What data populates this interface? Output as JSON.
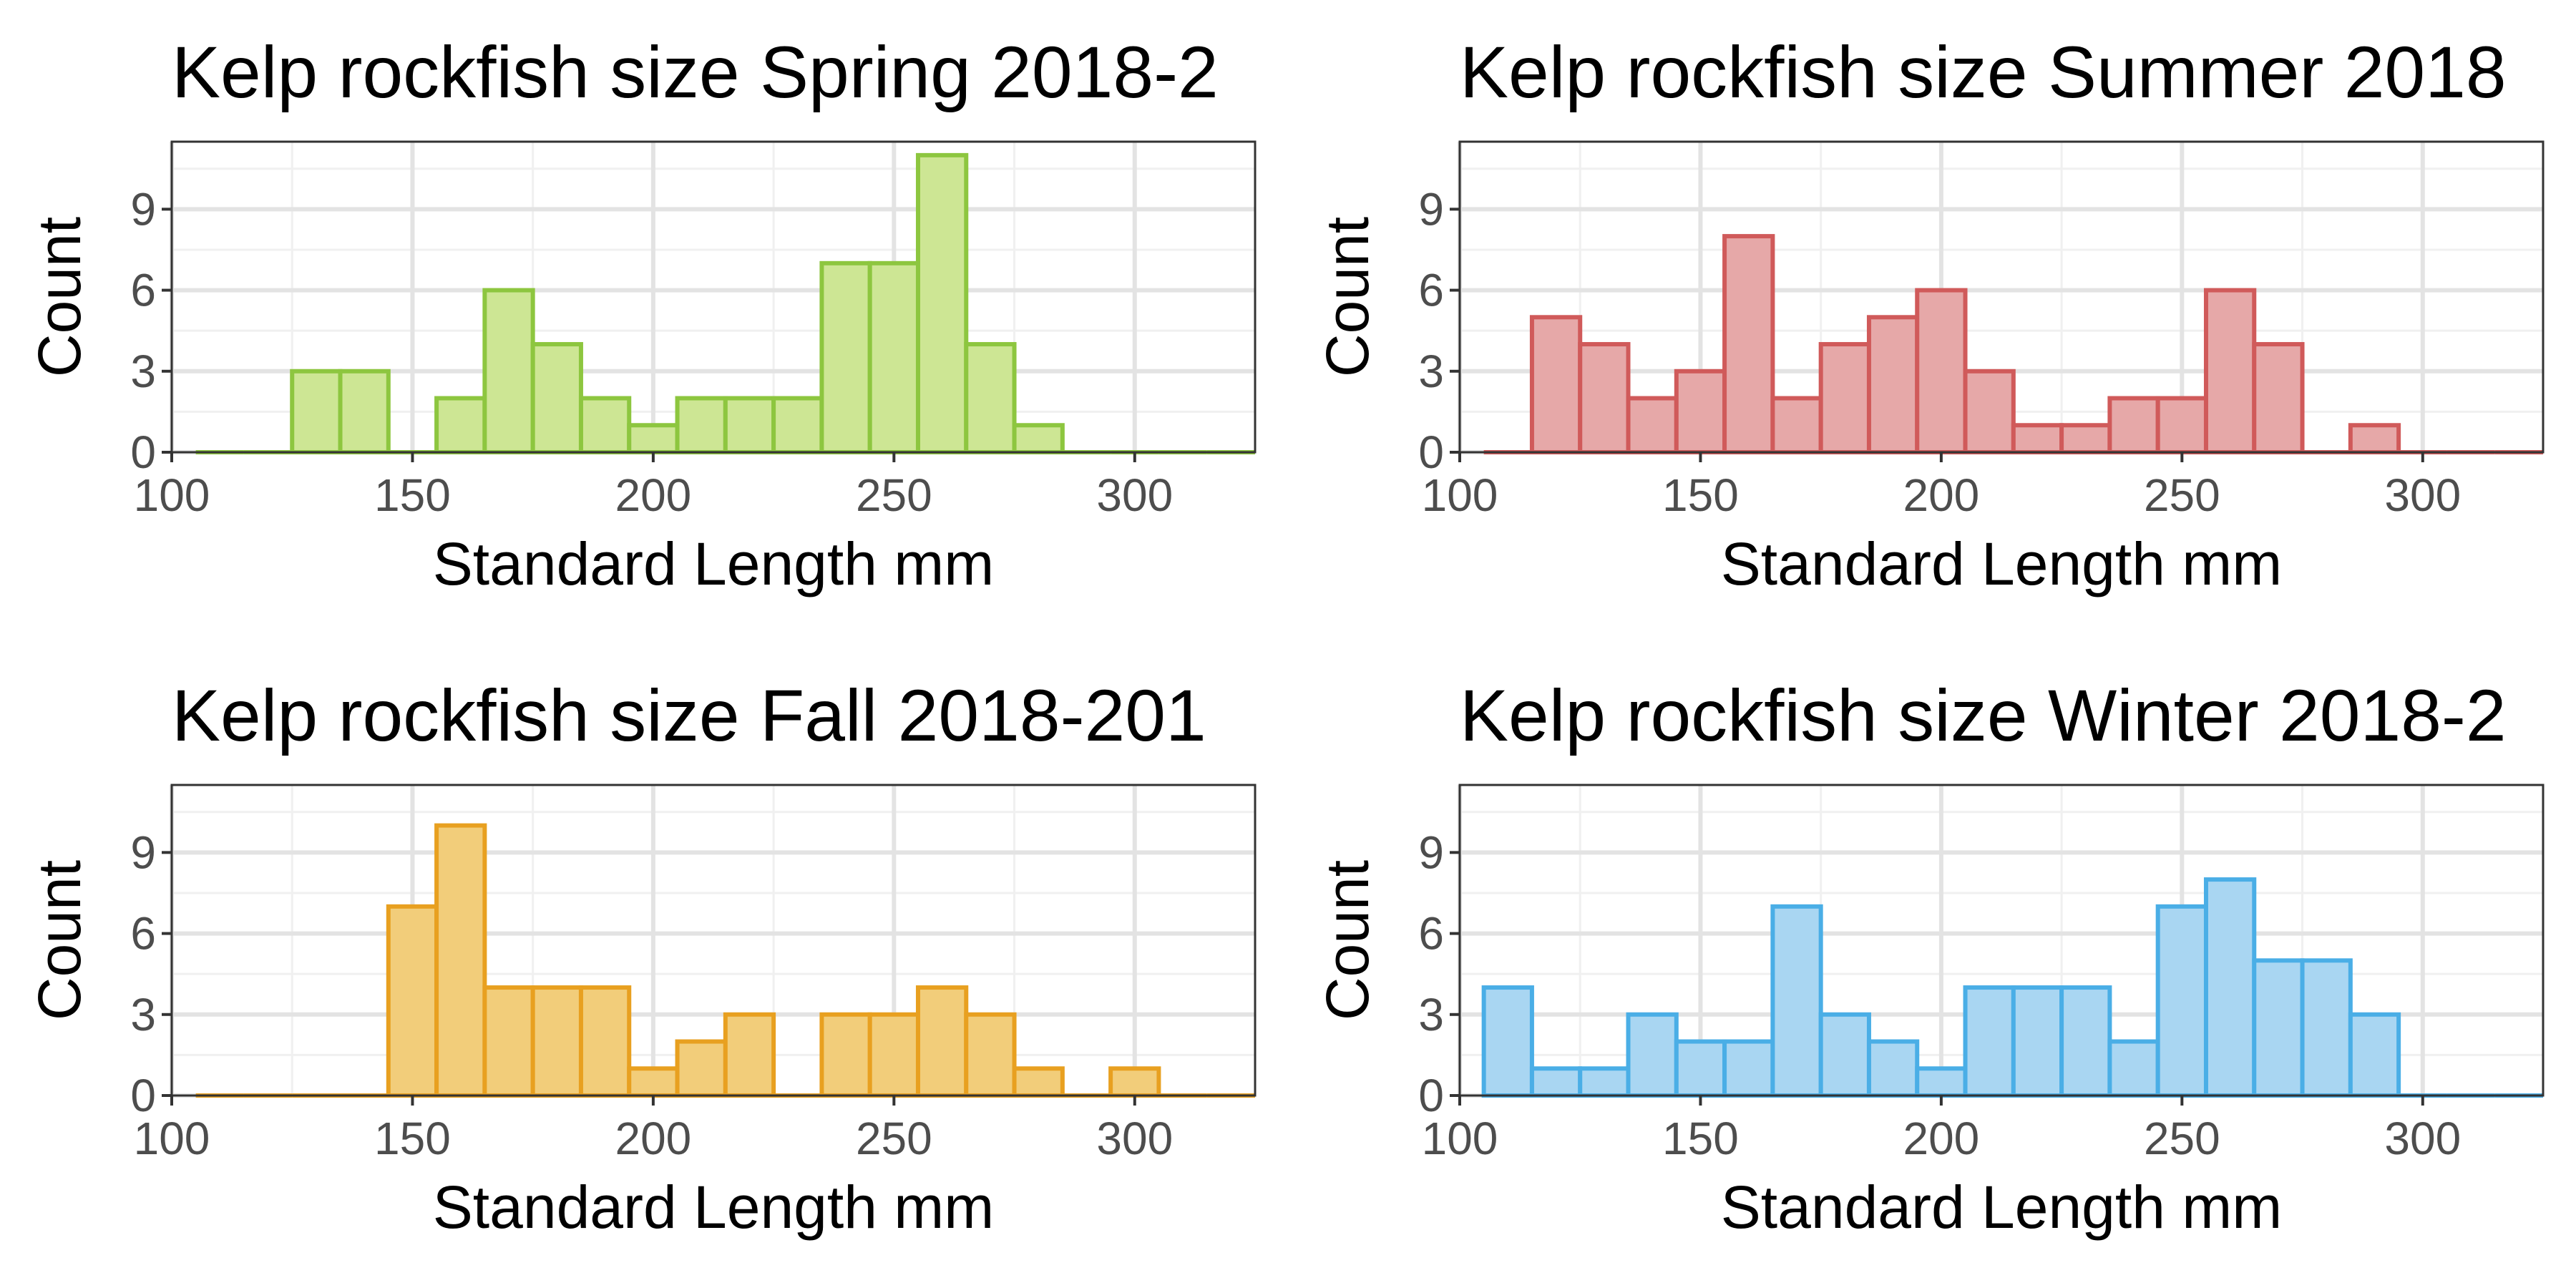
{
  "chart_data": [
    {
      "type": "bar",
      "title": "Kelp rockfish size Spring 2018-2",
      "xlabel": "Standard Length mm",
      "ylabel": "Count",
      "xlim": [
        100,
        325
      ],
      "ylim": [
        0,
        11.5
      ],
      "xticks": [
        "100",
        "150",
        "200",
        "250",
        "300"
      ],
      "yticks": [
        "0",
        "3",
        "6",
        "9"
      ],
      "bin_start": 105,
      "bin_width": 10,
      "values": [
        0,
        0,
        3,
        3,
        0,
        2,
        6,
        4,
        2,
        1,
        2,
        2,
        2,
        7,
        7,
        11,
        4,
        1,
        0,
        0,
        0,
        0
      ],
      "fill": "#cde694",
      "stroke": "#8dc63f",
      "grid": true
    },
    {
      "type": "bar",
      "title": "Kelp rockfish size Summer 2018",
      "xlabel": "Standard Length mm",
      "ylabel": "Count",
      "xlim": [
        100,
        325
      ],
      "ylim": [
        0,
        11.5
      ],
      "xticks": [
        "100",
        "150",
        "200",
        "250",
        "300"
      ],
      "yticks": [
        "0",
        "3",
        "6",
        "9"
      ],
      "bin_start": 105,
      "bin_width": 10,
      "values": [
        0,
        5,
        4,
        2,
        3,
        8,
        2,
        4,
        5,
        6,
        3,
        1,
        1,
        2,
        2,
        6,
        4,
        0,
        1,
        0,
        0,
        0
      ],
      "fill": "#e6a8a8",
      "stroke": "#d05a5a",
      "grid": true
    },
    {
      "type": "bar",
      "title": "Kelp rockfish size Fall 2018-201",
      "xlabel": "Standard Length mm",
      "ylabel": "Count",
      "xlim": [
        100,
        325
      ],
      "ylim": [
        0,
        11.5
      ],
      "xticks": [
        "100",
        "150",
        "200",
        "250",
        "300"
      ],
      "yticks": [
        "0",
        "3",
        "6",
        "9"
      ],
      "bin_start": 105,
      "bin_width": 10,
      "values": [
        0,
        0,
        0,
        0,
        7,
        10,
        4,
        4,
        4,
        1,
        2,
        3,
        0,
        3,
        3,
        4,
        3,
        1,
        0,
        1,
        0,
        0
      ],
      "fill": "#f2cd7a",
      "stroke": "#e8a020",
      "grid": true
    },
    {
      "type": "bar",
      "title": "Kelp rockfish size Winter 2018-2",
      "xlabel": "Standard Length mm",
      "ylabel": "Count",
      "xlim": [
        100,
        325
      ],
      "ylim": [
        0,
        11.5
      ],
      "xticks": [
        "100",
        "150",
        "200",
        "250",
        "300"
      ],
      "yticks": [
        "0",
        "3",
        "6",
        "9"
      ],
      "bin_start": 105,
      "bin_width": 10,
      "values": [
        4,
        1,
        1,
        3,
        2,
        2,
        7,
        3,
        2,
        1,
        4,
        4,
        4,
        2,
        7,
        8,
        5,
        5,
        3,
        0,
        0,
        0
      ],
      "fill": "#a9d6f2",
      "stroke": "#4aaee6",
      "grid": true
    }
  ]
}
